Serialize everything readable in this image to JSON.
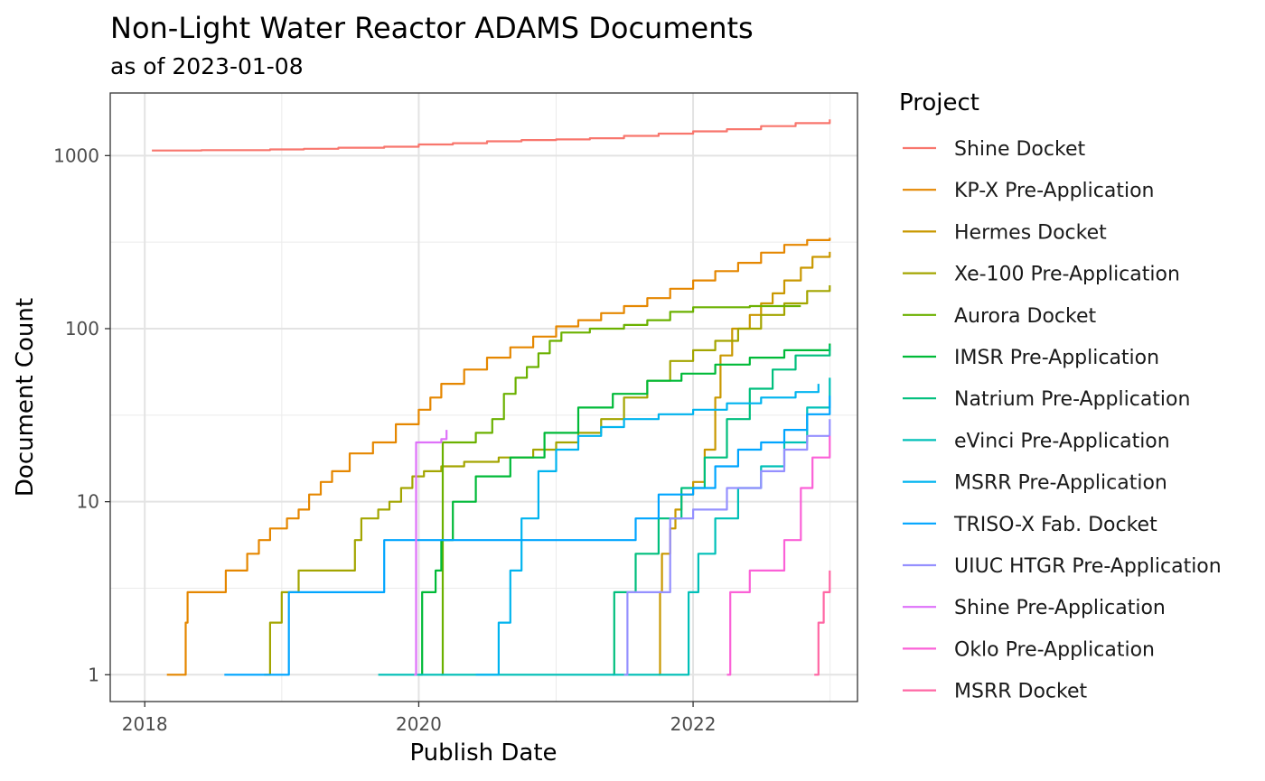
{
  "chart_data": {
    "type": "line",
    "step": true,
    "title": "Non-Light Water Reactor ADAMS Documents",
    "subtitle": "as of 2023-01-08",
    "xlabel": "Publish Date",
    "ylabel": "Document Count",
    "x_scale": "date",
    "y_scale": "log10",
    "xlim": [
      "2017-10-01",
      "2023-03-15"
    ],
    "ylim": [
      0.7,
      2300
    ],
    "x_ticks": [
      {
        "value": "2018-01-01",
        "label": "2018"
      },
      {
        "value": "2020-01-01",
        "label": "2020"
      },
      {
        "value": "2022-01-01",
        "label": "2022"
      }
    ],
    "x_minor": [
      "2019-01-01",
      "2021-01-01",
      "2023-01-01"
    ],
    "y_ticks": [
      {
        "value": 1,
        "label": "1"
      },
      {
        "value": 10,
        "label": "10"
      },
      {
        "value": 100,
        "label": "100"
      },
      {
        "value": 1000,
        "label": "1000"
      }
    ],
    "y_minor": [
      3.162,
      31.62,
      316.2
    ],
    "grid": true,
    "legend_title": "Project",
    "legend_position": "right",
    "series": [
      {
        "name": "Shine Docket",
        "color": "#F8766D",
        "points": [
          [
            "2018-01-20",
            1070
          ],
          [
            "2018-06-01",
            1075
          ],
          [
            "2018-12-01",
            1085
          ],
          [
            "2019-03-01",
            1095
          ],
          [
            "2019-06-01",
            1110
          ],
          [
            "2019-10-01",
            1125
          ],
          [
            "2020-01-01",
            1160
          ],
          [
            "2020-04-01",
            1180
          ],
          [
            "2020-07-01",
            1210
          ],
          [
            "2020-10-01",
            1230
          ],
          [
            "2021-01-01",
            1240
          ],
          [
            "2021-04-01",
            1260
          ],
          [
            "2021-07-01",
            1300
          ],
          [
            "2021-10-01",
            1340
          ],
          [
            "2022-01-01",
            1380
          ],
          [
            "2022-04-01",
            1420
          ],
          [
            "2022-07-01",
            1480
          ],
          [
            "2022-10-01",
            1540
          ],
          [
            "2022-12-31",
            1620
          ]
        ]
      },
      {
        "name": "KP-X Pre-Application",
        "color": "#E58700",
        "points": [
          [
            "2018-03-01",
            1
          ],
          [
            "2018-04-15",
            1
          ],
          [
            "2018-04-20",
            2
          ],
          [
            "2018-04-25",
            3
          ],
          [
            "2018-08-01",
            3
          ],
          [
            "2018-08-05",
            4
          ],
          [
            "2018-10-01",
            5
          ],
          [
            "2018-11-01",
            6
          ],
          [
            "2018-12-01",
            7
          ],
          [
            "2019-01-15",
            8
          ],
          [
            "2019-02-15",
            9
          ],
          [
            "2019-03-15",
            11
          ],
          [
            "2019-04-15",
            13
          ],
          [
            "2019-05-15",
            15
          ],
          [
            "2019-07-01",
            19
          ],
          [
            "2019-09-01",
            22
          ],
          [
            "2019-11-01",
            28
          ],
          [
            "2020-01-01",
            34
          ],
          [
            "2020-02-01",
            40
          ],
          [
            "2020-03-01",
            48
          ],
          [
            "2020-05-01",
            58
          ],
          [
            "2020-07-01",
            68
          ],
          [
            "2020-09-01",
            78
          ],
          [
            "2020-11-01",
            90
          ],
          [
            "2021-01-01",
            103
          ],
          [
            "2021-03-01",
            112
          ],
          [
            "2021-05-01",
            123
          ],
          [
            "2021-07-01",
            135
          ],
          [
            "2021-09-01",
            150
          ],
          [
            "2021-11-01",
            170
          ],
          [
            "2022-01-01",
            190
          ],
          [
            "2022-03-01",
            215
          ],
          [
            "2022-05-01",
            240
          ],
          [
            "2022-07-01",
            275
          ],
          [
            "2022-09-01",
            305
          ],
          [
            "2022-11-01",
            325
          ],
          [
            "2022-12-31",
            335
          ]
        ]
      },
      {
        "name": "Hermes Docket",
        "color": "#C99800",
        "points": [
          [
            "2021-10-01",
            1
          ],
          [
            "2021-10-05",
            3
          ],
          [
            "2021-10-10",
            5
          ],
          [
            "2021-11-01",
            7
          ],
          [
            "2021-11-15",
            9
          ],
          [
            "2021-12-01",
            11
          ],
          [
            "2022-01-01",
            13
          ],
          [
            "2022-02-01",
            20
          ],
          [
            "2022-03-01",
            40
          ],
          [
            "2022-03-15",
            70
          ],
          [
            "2022-04-15",
            100
          ],
          [
            "2022-06-01",
            120
          ],
          [
            "2022-07-01",
            140
          ],
          [
            "2022-08-01",
            160
          ],
          [
            "2022-09-01",
            190
          ],
          [
            "2022-10-15",
            225
          ],
          [
            "2022-11-15",
            260
          ],
          [
            "2022-12-31",
            278
          ]
        ]
      },
      {
        "name": "Xe-100 Pre-Application",
        "color": "#A3A500",
        "points": [
          [
            "2018-11-15",
            1
          ],
          [
            "2018-12-01",
            2
          ],
          [
            "2019-01-01",
            3
          ],
          [
            "2019-02-15",
            4
          ],
          [
            "2019-05-01",
            4
          ],
          [
            "2019-07-15",
            6
          ],
          [
            "2019-08-01",
            8
          ],
          [
            "2019-09-15",
            9
          ],
          [
            "2019-10-15",
            10
          ],
          [
            "2019-11-15",
            12
          ],
          [
            "2019-12-15",
            14
          ],
          [
            "2020-01-15",
            15
          ],
          [
            "2020-03-01",
            16
          ],
          [
            "2020-05-01",
            17
          ],
          [
            "2020-08-01",
            18
          ],
          [
            "2020-11-01",
            20
          ],
          [
            "2021-01-01",
            22
          ],
          [
            "2021-03-01",
            25
          ],
          [
            "2021-05-01",
            30
          ],
          [
            "2021-07-01",
            40
          ],
          [
            "2021-09-01",
            50
          ],
          [
            "2021-11-01",
            65
          ],
          [
            "2022-01-01",
            75
          ],
          [
            "2022-03-01",
            85
          ],
          [
            "2022-05-01",
            100
          ],
          [
            "2022-07-01",
            120
          ],
          [
            "2022-09-01",
            140
          ],
          [
            "2022-11-01",
            165
          ],
          [
            "2022-12-31",
            178
          ]
        ]
      },
      {
        "name": "Aurora Docket",
        "color": "#6BB100",
        "points": [
          [
            "2020-03-01",
            1
          ],
          [
            "2020-03-05",
            22
          ],
          [
            "2020-06-01",
            25
          ],
          [
            "2020-07-15",
            30
          ],
          [
            "2020-08-15",
            42
          ],
          [
            "2020-09-15",
            52
          ],
          [
            "2020-10-15",
            60
          ],
          [
            "2020-11-15",
            72
          ],
          [
            "2020-12-15",
            85
          ],
          [
            "2021-01-15",
            95
          ],
          [
            "2021-04-01",
            100
          ],
          [
            "2021-07-01",
            105
          ],
          [
            "2021-09-01",
            112
          ],
          [
            "2021-11-01",
            125
          ],
          [
            "2022-01-01",
            133
          ],
          [
            "2022-06-01",
            135
          ],
          [
            "2022-10-15",
            135
          ]
        ]
      },
      {
        "name": "IMSR Pre-Application",
        "color": "#00BA38",
        "points": [
          [
            "2020-01-01",
            1
          ],
          [
            "2020-01-10",
            3
          ],
          [
            "2020-02-15",
            4
          ],
          [
            "2020-03-01",
            6
          ],
          [
            "2020-04-01",
            10
          ],
          [
            "2020-06-01",
            14
          ],
          [
            "2020-09-01",
            18
          ],
          [
            "2020-12-01",
            25
          ],
          [
            "2021-03-01",
            35
          ],
          [
            "2021-06-01",
            42
          ],
          [
            "2021-09-01",
            50
          ],
          [
            "2021-12-01",
            55
          ],
          [
            "2022-03-01",
            62
          ],
          [
            "2022-06-01",
            68
          ],
          [
            "2022-09-01",
            75
          ],
          [
            "2022-12-31",
            82
          ]
        ]
      },
      {
        "name": "Natrium Pre-Application",
        "color": "#00BF7D",
        "points": [
          [
            "2021-06-01",
            1
          ],
          [
            "2021-06-05",
            3
          ],
          [
            "2021-08-01",
            5
          ],
          [
            "2021-10-01",
            8
          ],
          [
            "2021-12-01",
            12
          ],
          [
            "2022-02-01",
            18
          ],
          [
            "2022-04-01",
            30
          ],
          [
            "2022-06-01",
            45
          ],
          [
            "2022-08-01",
            58
          ],
          [
            "2022-10-01",
            70
          ],
          [
            "2022-12-31",
            80
          ]
        ]
      },
      {
        "name": "eVinci Pre-Application",
        "color": "#00C0B8",
        "points": [
          [
            "2019-09-15",
            1
          ],
          [
            "2021-12-15",
            1
          ],
          [
            "2021-12-20",
            3
          ],
          [
            "2022-01-15",
            5
          ],
          [
            "2022-03-01",
            8
          ],
          [
            "2022-05-01",
            12
          ],
          [
            "2022-07-01",
            16
          ],
          [
            "2022-09-01",
            22
          ],
          [
            "2022-11-01",
            35
          ],
          [
            "2022-12-31",
            52
          ]
        ]
      },
      {
        "name": "MSRR Pre-Application",
        "color": "#00B4EF",
        "points": [
          [
            "2020-06-01",
            1
          ],
          [
            "2020-08-01",
            2
          ],
          [
            "2020-09-01",
            4
          ],
          [
            "2020-10-01",
            8
          ],
          [
            "2020-11-15",
            15
          ],
          [
            "2021-01-01",
            20
          ],
          [
            "2021-03-01",
            24
          ],
          [
            "2021-05-01",
            27
          ],
          [
            "2021-07-01",
            30
          ],
          [
            "2021-10-01",
            32
          ],
          [
            "2022-01-01",
            34
          ],
          [
            "2022-04-01",
            37
          ],
          [
            "2022-07-01",
            40
          ],
          [
            "2022-10-01",
            43
          ],
          [
            "2022-12-01",
            48
          ]
        ]
      },
      {
        "name": "TRISO-X Fab. Docket",
        "color": "#00A5FF",
        "points": [
          [
            "2018-08-01",
            1
          ],
          [
            "2019-01-15",
            1
          ],
          [
            "2019-01-20",
            3
          ],
          [
            "2019-08-01",
            3
          ],
          [
            "2019-10-01",
            6
          ],
          [
            "2021-07-01",
            6
          ],
          [
            "2021-08-01",
            8
          ],
          [
            "2021-10-01",
            11
          ],
          [
            "2022-01-01",
            12
          ],
          [
            "2022-03-01",
            16
          ],
          [
            "2022-05-01",
            20
          ],
          [
            "2022-07-01",
            22
          ],
          [
            "2022-09-01",
            26
          ],
          [
            "2022-11-01",
            32
          ],
          [
            "2022-12-31",
            41
          ]
        ]
      },
      {
        "name": "UIUC HTGR Pre-Application",
        "color": "#9590FF",
        "points": [
          [
            "2021-07-01",
            1
          ],
          [
            "2021-07-10",
            3
          ],
          [
            "2021-10-01",
            3
          ],
          [
            "2021-11-01",
            8
          ],
          [
            "2022-01-01",
            9
          ],
          [
            "2022-04-01",
            12
          ],
          [
            "2022-07-01",
            15
          ],
          [
            "2022-09-01",
            20
          ],
          [
            "2022-11-01",
            24
          ],
          [
            "2022-12-31",
            30
          ]
        ]
      },
      {
        "name": "Shine Pre-Application",
        "color": "#DE71F9",
        "points": [
          [
            "2019-12-20",
            1
          ],
          [
            "2019-12-25",
            22
          ],
          [
            "2020-03-01",
            23
          ],
          [
            "2020-03-15",
            26
          ]
        ]
      },
      {
        "name": "Oklo Pre-Application",
        "color": "#FB61D7",
        "points": [
          [
            "2022-04-01",
            1
          ],
          [
            "2022-04-10",
            3
          ],
          [
            "2022-06-01",
            4
          ],
          [
            "2022-09-01",
            6
          ],
          [
            "2022-10-15",
            12
          ],
          [
            "2022-11-15",
            18
          ],
          [
            "2022-12-31",
            24
          ]
        ]
      },
      {
        "name": "MSRR Docket",
        "color": "#FF67A4",
        "points": [
          [
            "2022-11-20",
            1
          ],
          [
            "2022-12-01",
            2
          ],
          [
            "2022-12-15",
            3
          ],
          [
            "2022-12-31",
            4
          ]
        ]
      }
    ]
  }
}
